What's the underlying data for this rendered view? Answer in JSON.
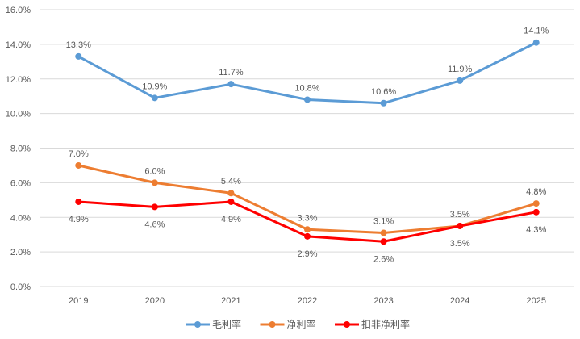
{
  "chart_data": {
    "type": "line",
    "title": "",
    "xlabel": "",
    "ylabel": "",
    "categories": [
      "2019",
      "2020",
      "2021",
      "2022",
      "2023",
      "2024",
      "2025"
    ],
    "ylim": [
      0,
      16
    ],
    "yticks": [
      "0.0%",
      "2.0%",
      "4.0%",
      "6.0%",
      "8.0%",
      "10.0%",
      "12.0%",
      "14.0%",
      "16.0%"
    ],
    "grid": true,
    "legend_position": "bottom",
    "series": [
      {
        "name": "毛利率",
        "color": "#5B9BD5",
        "values": [
          13.3,
          10.9,
          11.7,
          10.8,
          10.6,
          11.9,
          14.1
        ],
        "labels": [
          "13.3%",
          "10.9%",
          "11.7%",
          "10.8%",
          "10.6%",
          "11.9%",
          "14.1%"
        ],
        "label_pos": [
          "above",
          "above",
          "above",
          "above",
          "above",
          "above",
          "above"
        ]
      },
      {
        "name": "净利率",
        "color": "#ED7D31",
        "values": [
          7.0,
          6.0,
          5.4,
          3.3,
          3.1,
          3.5,
          4.8
        ],
        "labels": [
          "7.0%",
          "6.0%",
          "5.4%",
          "3.3%",
          "3.1%",
          "3.5%",
          "4.8%"
        ],
        "label_pos": [
          "above",
          "above",
          "above",
          "above",
          "above",
          "above",
          "above"
        ]
      },
      {
        "name": "扣非净利率",
        "color": "#FF0000",
        "values": [
          4.9,
          4.6,
          4.9,
          2.9,
          2.6,
          3.5,
          4.3
        ],
        "labels": [
          "4.9%",
          "4.6%",
          "4.9%",
          "2.9%",
          "2.6%",
          "3.5%",
          "4.3%"
        ],
        "label_pos": [
          "below",
          "below",
          "below",
          "below",
          "below",
          "below",
          "below"
        ]
      }
    ]
  }
}
